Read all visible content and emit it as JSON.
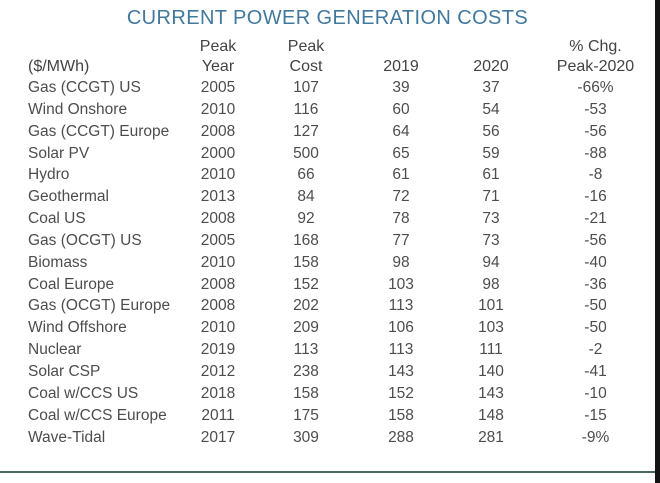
{
  "title": "CURRENT POWER GENERATION COSTS",
  "colors": {
    "title_accent": "#41799e",
    "body_text": "#4d4d4d",
    "header_text": "#434343",
    "bottom_rule": "#4c685e",
    "right_edge": "#141414",
    "background": "#ffffff"
  },
  "table": {
    "columns": [
      {
        "id": "technology",
        "line1": "",
        "line2": "($/MWh)"
      },
      {
        "id": "peak_year",
        "line1": "Peak",
        "line2": "Year"
      },
      {
        "id": "peak_cost",
        "line1": "Peak",
        "line2": "Cost"
      },
      {
        "id": "year_2019",
        "line1": "",
        "line2": "2019"
      },
      {
        "id": "year_2020",
        "line1": "",
        "line2": "2020"
      },
      {
        "id": "pct_change",
        "line1": "% Chg.",
        "line2": "Peak-2020"
      }
    ],
    "rows": [
      [
        "Gas (CCGT) US",
        "2005",
        "107",
        "39",
        "37",
        "-66%"
      ],
      [
        "Wind Onshore",
        "2010",
        "116",
        "60",
        "54",
        "-53"
      ],
      [
        "Gas (CCGT) Europe",
        "2008",
        "127",
        "64",
        "56",
        "-56"
      ],
      [
        "Solar PV",
        "2000",
        "500",
        "65",
        "59",
        "-88"
      ],
      [
        "Hydro",
        "2010",
        "66",
        "61",
        "61",
        "-8"
      ],
      [
        "Geothermal",
        "2013",
        "84",
        "72",
        "71",
        "-16"
      ],
      [
        "Coal US",
        "2008",
        "92",
        "78",
        "73",
        "-21"
      ],
      [
        "Gas (OCGT) US",
        "2005",
        "168",
        "77",
        "73",
        "-56"
      ],
      [
        "Biomass",
        "2010",
        "158",
        "98",
        "94",
        "-40"
      ],
      [
        "Coal Europe",
        "2008",
        "152",
        "103",
        "98",
        "-36"
      ],
      [
        "Gas (OCGT) Europe",
        "2008",
        "202",
        "113",
        "101",
        "-50"
      ],
      [
        "Wind Offshore",
        "2010",
        "209",
        "106",
        "103",
        "-50"
      ],
      [
        "Nuclear",
        "2019",
        "113",
        "113",
        "111",
        "-2"
      ],
      [
        "Solar CSP",
        "2012",
        "238",
        "143",
        "140",
        "-41"
      ],
      [
        "Coal w/CCS US",
        "2018",
        "158",
        "152",
        "143",
        "-10"
      ],
      [
        "Coal w/CCS Europe",
        "2011",
        "175",
        "158",
        "148",
        "-15"
      ],
      [
        "Wave-Tidal",
        "2017",
        "309",
        "288",
        "281",
        "-9%"
      ]
    ]
  },
  "chart_data": {
    "type": "table",
    "title": "CURRENT POWER GENERATION COSTS",
    "unit": "$/MWh",
    "columns": [
      "Technology ($/MWh)",
      "Peak Year",
      "Peak Cost",
      "2019",
      "2020",
      "% Chg. Peak-2020"
    ],
    "rows": [
      [
        "Gas (CCGT) US",
        2005,
        107,
        39,
        37,
        -66
      ],
      [
        "Wind Onshore",
        2010,
        116,
        60,
        54,
        -53
      ],
      [
        "Gas (CCGT) Europe",
        2008,
        127,
        64,
        56,
        -56
      ],
      [
        "Solar PV",
        2000,
        500,
        65,
        59,
        -88
      ],
      [
        "Hydro",
        2010,
        66,
        61,
        61,
        -8
      ],
      [
        "Geothermal",
        2013,
        84,
        72,
        71,
        -16
      ],
      [
        "Coal US",
        2008,
        92,
        78,
        73,
        -21
      ],
      [
        "Gas (OCGT) US",
        2005,
        168,
        77,
        73,
        -56
      ],
      [
        "Biomass",
        2010,
        158,
        98,
        94,
        -40
      ],
      [
        "Coal Europe",
        2008,
        152,
        103,
        98,
        -36
      ],
      [
        "Gas (OCGT) Europe",
        2008,
        202,
        113,
        101,
        -50
      ],
      [
        "Wind Offshore",
        2010,
        209,
        106,
        103,
        -50
      ],
      [
        "Nuclear",
        2019,
        113,
        113,
        111,
        -2
      ],
      [
        "Solar CSP",
        2012,
        238,
        143,
        140,
        -41
      ],
      [
        "Coal w/CCS US",
        2018,
        158,
        152,
        143,
        -10
      ],
      [
        "Coal w/CCS Europe",
        2011,
        175,
        158,
        148,
        -15
      ],
      [
        "Wave-Tidal",
        2017,
        309,
        288,
        281,
        -9
      ]
    ]
  }
}
